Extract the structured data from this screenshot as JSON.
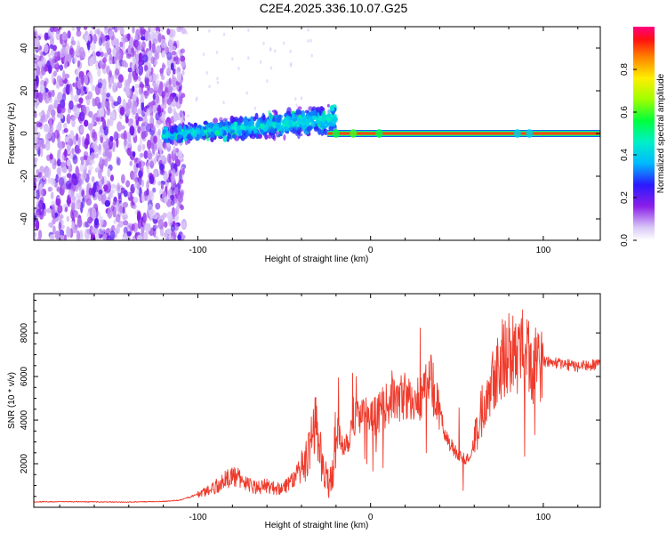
{
  "figure": {
    "title": "C2E4.2025.336.10.07.G25"
  },
  "chart_data": [
    {
      "type": "heatmap",
      "xlabel": "Height of straight line (km)",
      "ylabel": "Frequency (Hz)",
      "xlim": [
        -195,
        133
      ],
      "ylim": [
        -50,
        50
      ],
      "xticks": [
        -100,
        0,
        100
      ],
      "yticks": [
        -40,
        -20,
        0,
        20,
        40
      ],
      "colorbar": {
        "label": "Normalized spectral amplitude",
        "range": [
          0,
          1
        ],
        "ticks": [
          0.0,
          0.2,
          0.4,
          0.6,
          0.8
        ]
      },
      "regions": [
        {
          "name": "noise",
          "x": [
            -195,
            -108
          ],
          "freq_spread": [
            -50,
            50
          ],
          "amplitude": 0.1
        },
        {
          "name": "broadening",
          "x": [
            -120,
            -20
          ],
          "freq_spread": [
            -10,
            14
          ],
          "amplitude": 0.3
        },
        {
          "name": "tone",
          "x": [
            -25,
            133
          ],
          "frequency": 0,
          "amplitude": 0.95
        }
      ]
    },
    {
      "type": "line",
      "xlabel": "Height of straight line (km)",
      "ylabel": "SNR (10 * v/v)",
      "xlim": [
        -195,
        133
      ],
      "ylim": [
        0,
        9800
      ],
      "xticks": [
        -100,
        0,
        100
      ],
      "yticks": [
        2000,
        4000,
        6000,
        8000
      ],
      "series": [
        {
          "name": "SNR",
          "color": "#ef3b2c",
          "x": [
            -195,
            -180,
            -160,
            -140,
            -120,
            -110,
            -100,
            -95,
            -90,
            -85,
            -80,
            -75,
            -70,
            -65,
            -60,
            -55,
            -50,
            -45,
            -40,
            -35,
            -33,
            -31,
            -30,
            -28,
            -25,
            -22,
            -20,
            -18,
            -15,
            -12,
            -10,
            -5,
            0,
            5,
            10,
            12,
            15,
            20,
            25,
            30,
            35,
            40,
            42,
            45,
            50,
            55,
            58,
            62,
            66,
            70,
            75,
            80,
            85,
            88,
            92,
            95,
            100,
            110,
            120,
            133
          ],
          "y": [
            250,
            260,
            250,
            240,
            270,
            330,
            600,
            750,
            950,
            1200,
            1450,
            1300,
            1000,
            900,
            1000,
            850,
            950,
            1300,
            1700,
            2400,
            3400,
            4800,
            2800,
            1800,
            1200,
            1500,
            3500,
            3200,
            2900,
            3300,
            4200,
            4300,
            4000,
            4400,
            4700,
            5200,
            4800,
            5200,
            4600,
            5300,
            5800,
            4300,
            3700,
            3000,
            2500,
            2200,
            2400,
            3600,
            5000,
            6000,
            6700,
            7300,
            6800,
            7500,
            6700,
            6500,
            6700,
            6600,
            6450,
            6550
          ]
        }
      ]
    }
  ]
}
